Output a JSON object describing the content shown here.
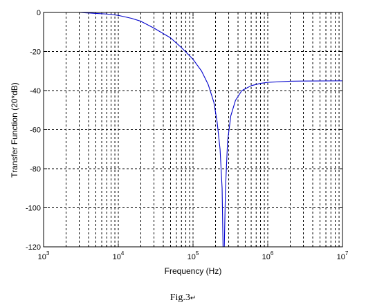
{
  "chart_data": {
    "type": "line",
    "title": "",
    "xlabel": "Frequency (Hz)",
    "ylabel": "Transfer Function (20*dB)",
    "x_scale": "log",
    "xlim": [
      1000,
      10000000
    ],
    "ylim": [
      -120,
      0
    ],
    "x_ticks": [
      {
        "base": "10",
        "exp": "3"
      },
      {
        "base": "10",
        "exp": "4"
      },
      {
        "base": "10",
        "exp": "5"
      },
      {
        "base": "10",
        "exp": "6"
      },
      {
        "base": "10",
        "exp": "7"
      }
    ],
    "y_ticks": [
      "0",
      "-20",
      "-40",
      "-60",
      "-80",
      "-100",
      "-120"
    ],
    "grid": true,
    "grid_style": "dashed",
    "series": [
      {
        "color": "#0000cc",
        "x": [
          1000,
          3000,
          5000,
          7000,
          10000,
          15000,
          20000,
          30000,
          50000,
          70000,
          100000,
          130000,
          160000,
          190000,
          210000,
          230000,
          245000,
          252000,
          262000,
          272000,
          290000,
          320000,
          370000,
          450000,
          600000,
          800000,
          1000000,
          2000000,
          3000000,
          10000000
        ],
        "y": [
          0,
          0,
          -0.5,
          -0.8,
          -1.5,
          -3,
          -4.5,
          -8,
          -13,
          -18,
          -24,
          -30,
          -37,
          -46,
          -56,
          -70,
          -90,
          -120,
          -120,
          -90,
          -66,
          -53,
          -45,
          -40,
          -37.5,
          -36.3,
          -35.8,
          -35.2,
          -35.1,
          -35
        ]
      }
    ]
  },
  "caption": "Fig.3"
}
